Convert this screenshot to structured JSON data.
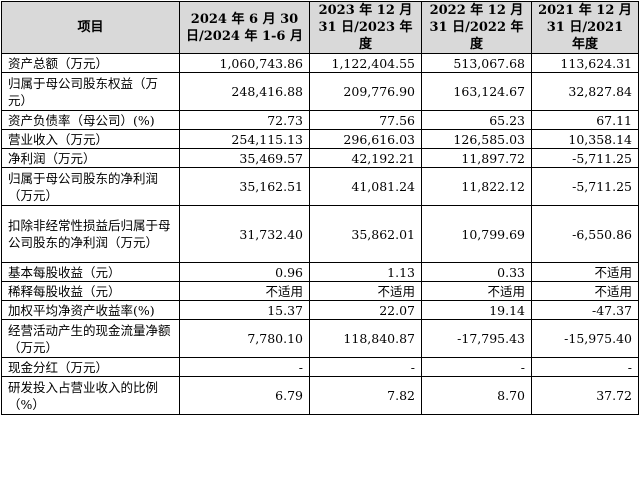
{
  "table": {
    "headers": [
      "项目",
      "2024 年 6 月 30 日/2024 年 1-6 月",
      "2023 年 12 月 31 日/2023 年度",
      "2022 年 12 月 31 日/2022 年度",
      "2021 年 12 月 31 日/2021 年度"
    ],
    "rows": [
      {
        "label": "资产总额（万元）",
        "values": [
          "1,060,743.86",
          "1,122,404.55",
          "513,067.68",
          "113,624.31"
        ]
      },
      {
        "label": "归属于母公司股东权益（万元）",
        "values": [
          "248,416.88",
          "209,776.90",
          "163,124.67",
          "32,827.84"
        ]
      },
      {
        "label": "资产负债率（母公司）(%)",
        "values": [
          "72.73",
          "77.56",
          "65.23",
          "67.11"
        ]
      },
      {
        "label": "营业收入（万元）",
        "values": [
          "254,115.13",
          "296,616.03",
          "126,585.03",
          "10,358.14"
        ]
      },
      {
        "label": "净利润（万元）",
        "values": [
          "35,469.57",
          "42,192.21",
          "11,897.72",
          "-5,711.25"
        ]
      },
      {
        "label": "归属于母公司股东的净利润（万元）",
        "values": [
          "35,162.51",
          "41,081.24",
          "11,822.12",
          "-5,711.25"
        ]
      },
      {
        "label": "扣除非经常性损益后归属于母公司股东的净利润（万元）",
        "values": [
          "31,732.40",
          "35,862.01",
          "10,799.69",
          "-6,550.86"
        ]
      },
      {
        "label": "基本每股收益（元）",
        "values": [
          "0.96",
          "1.13",
          "0.33",
          "不适用"
        ]
      },
      {
        "label": "稀释每股收益（元）",
        "values": [
          "不适用",
          "不适用",
          "不适用",
          "不适用"
        ]
      },
      {
        "label": "加权平均净资产收益率(%)",
        "values": [
          "15.37",
          "22.07",
          "19.14",
          "-47.37"
        ]
      },
      {
        "label": "经营活动产生的现金流量净额（万元）",
        "values": [
          "7,780.10",
          "118,840.87",
          "-17,795.43",
          "-15,975.40"
        ]
      },
      {
        "label": "现金分红（万元）",
        "values": [
          "-",
          "-",
          "-",
          "-"
        ]
      },
      {
        "label": "研发投入占营业收入的比例（%）",
        "values": [
          "6.79",
          "7.82",
          "8.70",
          "37.72"
        ]
      }
    ]
  }
}
